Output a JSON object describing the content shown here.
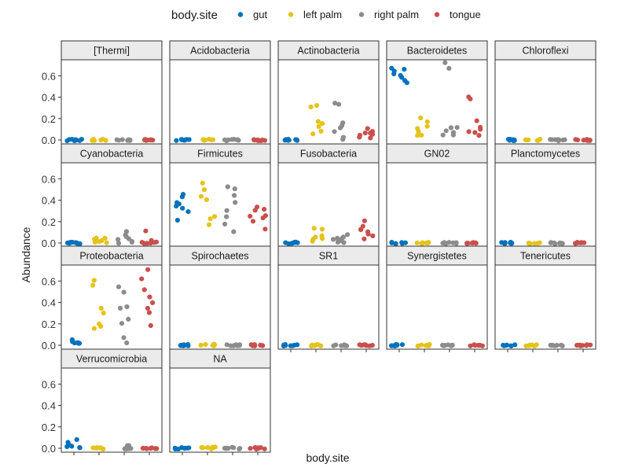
{
  "chart_data": {
    "type": "scatter",
    "layout": "faceted strip chart (jittered points)",
    "xlabel": "body.site",
    "ylabel": "Abundance",
    "ylim": [
      0,
      0.75
    ],
    "yticks": [
      "0.0",
      "0.2",
      "0.4",
      "0.6"
    ],
    "ytick_values": [
      0,
      0.2,
      0.4,
      0.6
    ],
    "x_ticks_labeled": false,
    "grid": false,
    "legend": {
      "title": "body.site",
      "position": "top",
      "entries": [
        "gut",
        "left palm",
        "right palm",
        "tongue"
      ]
    },
    "colors": {
      "gut": "#0072bd",
      "left palm": "#e5c31a",
      "right palm": "#8c8c8c",
      "tongue": "#c9504d"
    },
    "categories": [
      "gut",
      "left palm",
      "right palm",
      "tongue"
    ],
    "facets": [
      {
        "title": "[Thermi]",
        "points": {
          "gut": [
            0,
            0,
            0,
            0,
            0,
            0,
            0,
            0
          ],
          "left palm": [
            0,
            0,
            0,
            0,
            0,
            0,
            0
          ],
          "right palm": [
            0,
            0,
            0,
            0,
            0,
            0,
            0,
            0
          ],
          "tongue": [
            0,
            0,
            0,
            0,
            0,
            0,
            0,
            0
          ]
        }
      },
      {
        "title": "Acidobacteria",
        "points": {
          "gut": [
            0,
            0,
            0,
            0,
            0,
            0,
            0,
            0
          ],
          "left palm": [
            0,
            0,
            0,
            0,
            0,
            0,
            0
          ],
          "right palm": [
            0,
            0,
            0,
            0,
            0,
            0,
            0,
            0
          ],
          "tongue": [
            0,
            0,
            0,
            0,
            0,
            0,
            0,
            0
          ]
        }
      },
      {
        "title": "Actinobacteria",
        "points": {
          "gut": [
            0,
            0,
            0,
            0,
            0,
            0,
            0,
            0
          ],
          "left palm": [
            0.32,
            0.31,
            0.18,
            0.15,
            0.12,
            0.08,
            0.06
          ],
          "right palm": [
            0.35,
            0.33,
            0.16,
            0.14,
            0.12,
            0.08,
            0.02,
            0.01
          ],
          "tongue": [
            0.1,
            0.08,
            0.07,
            0.06,
            0.05,
            0.04,
            0.03,
            0.02
          ]
        }
      },
      {
        "title": "Bacteroidetes",
        "points": {
          "gut": [
            0.67,
            0.66,
            0.64,
            0.62,
            0.6,
            0.58,
            0.55,
            0.53
          ],
          "left palm": [
            0.2,
            0.17,
            0.12,
            0.1,
            0.08,
            0.05,
            0.04
          ],
          "right palm": [
            0.72,
            0.67,
            0.12,
            0.11,
            0.09,
            0.07,
            0.05,
            0.04
          ],
          "tongue": [
            0.4,
            0.38,
            0.18,
            0.12,
            0.1,
            0.08,
            0.07,
            0.05
          ]
        }
      },
      {
        "title": "Chloroflexi",
        "points": {
          "gut": [
            0,
            0,
            0,
            0,
            0,
            0,
            0,
            0
          ],
          "left palm": [
            0,
            0,
            0,
            0,
            0,
            0,
            0
          ],
          "right palm": [
            0,
            0,
            0,
            0,
            0,
            0,
            0,
            0
          ],
          "tongue": [
            0,
            0,
            0,
            0,
            0,
            0,
            0,
            0
          ]
        }
      },
      {
        "title": "Cyanobacteria",
        "points": {
          "gut": [
            0,
            0,
            0,
            0,
            0,
            0,
            0,
            0
          ],
          "left palm": [
            0.05,
            0.04,
            0.03,
            0.02,
            0.02,
            0.01,
            0.01
          ],
          "right palm": [
            0.11,
            0.08,
            0.06,
            0.04,
            0.03,
            0.02,
            0.01,
            0
          ],
          "tongue": [
            0.12,
            0.02,
            0.01,
            0,
            0,
            0,
            0,
            0
          ]
        }
      },
      {
        "title": "Firmicutes",
        "points": {
          "gut": [
            0.45,
            0.43,
            0.38,
            0.36,
            0.35,
            0.33,
            0.3,
            0.22
          ],
          "left palm": [
            0.56,
            0.5,
            0.43,
            0.4,
            0.25,
            0.22,
            0.17
          ],
          "right palm": [
            0.52,
            0.5,
            0.45,
            0.38,
            0.3,
            0.24,
            0.17,
            0.1
          ],
          "tongue": [
            0.33,
            0.31,
            0.3,
            0.26,
            0.25,
            0.23,
            0.21,
            0.13
          ]
        }
      },
      {
        "title": "Fusobacteria",
        "points": {
          "gut": [
            0.01,
            0.01,
            0,
            0,
            0,
            0,
            0,
            0
          ],
          "left palm": [
            0.14,
            0.13,
            0.07,
            0.05,
            0.04,
            0.03,
            0.02
          ],
          "right palm": [
            0.08,
            0.06,
            0.05,
            0.04,
            0.03,
            0.02,
            0.01,
            0
          ],
          "tongue": [
            0.2,
            0.15,
            0.13,
            0.12,
            0.1,
            0.09,
            0.07,
            0.04
          ]
        }
      },
      {
        "title": "GN02",
        "points": {
          "gut": [
            0,
            0,
            0,
            0,
            0,
            0,
            0,
            0
          ],
          "left palm": [
            0,
            0,
            0,
            0,
            0,
            0,
            0
          ],
          "right palm": [
            0,
            0,
            0,
            0,
            0,
            0,
            0,
            0
          ],
          "tongue": [
            0,
            0,
            0,
            0,
            0,
            0,
            0,
            0
          ]
        }
      },
      {
        "title": "Planctomycetes",
        "points": {
          "gut": [
            0,
            0,
            0,
            0,
            0,
            0,
            0,
            0
          ],
          "left palm": [
            0,
            0,
            0,
            0,
            0,
            0,
            0
          ],
          "right palm": [
            0,
            0,
            0,
            0,
            0,
            0,
            0,
            0
          ],
          "tongue": [
            0,
            0,
            0,
            0,
            0,
            0,
            0,
            0
          ]
        }
      },
      {
        "title": "Proteobacteria",
        "points": {
          "gut": [
            0.05,
            0.04,
            0.03,
            0.03,
            0.02,
            0.02,
            0.02,
            0.01
          ],
          "left palm": [
            0.6,
            0.56,
            0.35,
            0.3,
            0.2,
            0.17,
            0.15
          ],
          "right palm": [
            0.55,
            0.5,
            0.36,
            0.34,
            0.24,
            0.2,
            0.07,
            0.02
          ],
          "tongue": [
            0.7,
            0.62,
            0.52,
            0.45,
            0.4,
            0.35,
            0.3,
            0.18
          ]
        }
      },
      {
        "title": "Spirochaetes",
        "points": {
          "gut": [
            0,
            0,
            0,
            0,
            0,
            0,
            0,
            0
          ],
          "left palm": [
            0.01,
            0,
            0,
            0,
            0,
            0,
            0
          ],
          "right palm": [
            0,
            0,
            0,
            0,
            0,
            0,
            0,
            0
          ],
          "tongue": [
            0,
            0,
            0,
            0,
            0,
            0,
            0,
            0
          ]
        }
      },
      {
        "title": "SR1",
        "points": {
          "gut": [
            0,
            0,
            0,
            0,
            0,
            0,
            0,
            0
          ],
          "left palm": [
            0,
            0,
            0,
            0,
            0,
            0,
            0
          ],
          "right palm": [
            0,
            0,
            0,
            0,
            0,
            0,
            0,
            0
          ],
          "tongue": [
            0,
            0,
            0,
            0,
            0,
            0,
            0,
            0
          ]
        }
      },
      {
        "title": "Synergistetes",
        "points": {
          "gut": [
            0,
            0,
            0,
            0,
            0,
            0,
            0,
            0
          ],
          "left palm": [
            0.01,
            0,
            0,
            0,
            0,
            0,
            0
          ],
          "right palm": [
            0,
            0,
            0,
            0,
            0,
            0,
            0,
            0
          ],
          "tongue": [
            0,
            0,
            0,
            0,
            0,
            0,
            0,
            0
          ]
        }
      },
      {
        "title": "Tenericutes",
        "points": {
          "gut": [
            0,
            0,
            0,
            0,
            0,
            0,
            0,
            0
          ],
          "left palm": [
            0,
            0,
            0,
            0,
            0,
            0,
            0
          ],
          "right palm": [
            0,
            0,
            0,
            0,
            0,
            0,
            0,
            0
          ],
          "tongue": [
            0,
            0,
            0,
            0,
            0,
            0,
            0,
            0
          ]
        }
      },
      {
        "title": "Verrucomicrobia",
        "points": {
          "gut": [
            0.08,
            0.05,
            0.03,
            0.02,
            0.01,
            0.01,
            0,
            0
          ],
          "left palm": [
            0,
            0,
            0,
            0,
            0,
            0,
            0
          ],
          "right palm": [
            0.03,
            0.02,
            0.01,
            0,
            0,
            0,
            0,
            0
          ],
          "tongue": [
            0,
            0,
            0,
            0,
            0,
            0,
            0,
            0
          ]
        }
      },
      {
        "title": "NA",
        "points": {
          "gut": [
            0,
            0,
            0,
            0,
            0,
            0,
            0,
            0
          ],
          "left palm": [
            0.01,
            0.01,
            0,
            0,
            0,
            0,
            0
          ],
          "right palm": [
            0.01,
            0,
            0,
            0,
            0,
            0,
            0,
            0
          ],
          "tongue": [
            0,
            0,
            0,
            0,
            0,
            0,
            0,
            0
          ]
        }
      }
    ]
  }
}
